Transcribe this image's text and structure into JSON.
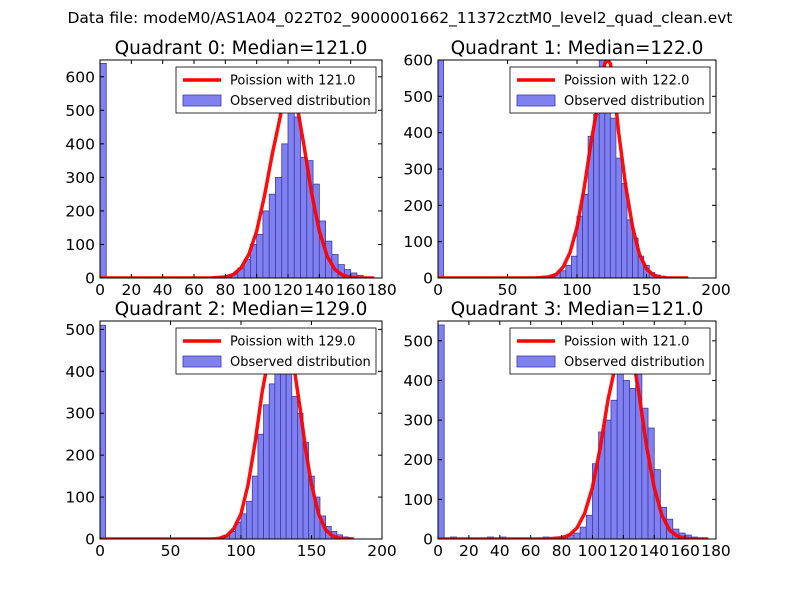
{
  "figure": {
    "suptitle": "Data file: modeM0/AS1A04_022T02_9000001662_11372cztM0_level2_quad_clean.evt"
  },
  "colors": {
    "bar_fill": "#8080f0",
    "bar_edge": "#3b3ba8",
    "poisson_line": "#ff0000"
  },
  "chart_data": [
    {
      "type": "bar",
      "title": "Quadrant 0: Median=121.0",
      "xlim": [
        0,
        180
      ],
      "ylim": [
        0,
        650
      ],
      "xticks": [
        0,
        20,
        40,
        60,
        80,
        100,
        120,
        140,
        160,
        180
      ],
      "yticks": [
        0,
        100,
        200,
        300,
        400,
        500,
        600
      ],
      "grid": false,
      "legend_position": "top-right",
      "series": [
        {
          "name": "Observed distribution",
          "kind": "histogram",
          "bin_edges": [
            0,
            4,
            8,
            12,
            16,
            20,
            24,
            28,
            32,
            36,
            40,
            44,
            48,
            52,
            56,
            60,
            64,
            68,
            72,
            76,
            80,
            84,
            88,
            92,
            96,
            100,
            104,
            108,
            112,
            116,
            120,
            124,
            128,
            132,
            136,
            140,
            144,
            148,
            152,
            156,
            160,
            164,
            168,
            172,
            176
          ],
          "counts": [
            640,
            0,
            0,
            0,
            0,
            0,
            0,
            0,
            0,
            0,
            0,
            0,
            0,
            0,
            0,
            0,
            0,
            0,
            0,
            5,
            8,
            12,
            30,
            55,
            100,
            130,
            200,
            250,
            300,
            400,
            560,
            480,
            360,
            350,
            280,
            170,
            110,
            70,
            40,
            25,
            15,
            8,
            3,
            0
          ]
        },
        {
          "name": "Poission with 121.0",
          "kind": "line",
          "x": [
            0,
            60,
            70,
            80,
            85,
            90,
            95,
            100,
            105,
            110,
            115,
            117,
            119,
            121,
            123,
            125,
            127,
            130,
            135,
            140,
            145,
            150,
            155,
            160,
            165,
            170,
            175
          ],
          "y": [
            0,
            0,
            0,
            3,
            10,
            30,
            70,
            140,
            245,
            370,
            480,
            545,
            590,
            610,
            590,
            545,
            480,
            400,
            255,
            140,
            65,
            25,
            8,
            2,
            0,
            0,
            0
          ]
        }
      ]
    },
    {
      "type": "bar",
      "title": "Quadrant 1: Median=122.0",
      "xlim": [
        0,
        200
      ],
      "ylim": [
        0,
        600
      ],
      "xticks": [
        0,
        50,
        100,
        150,
        200
      ],
      "yticks": [
        0,
        100,
        200,
        300,
        400,
        500,
        600
      ],
      "grid": false,
      "legend_position": "top-right",
      "series": [
        {
          "name": "Observed distribution",
          "kind": "histogram",
          "bin_edges": [
            0,
            4,
            8,
            12,
            16,
            20,
            24,
            28,
            32,
            36,
            40,
            44,
            48,
            52,
            56,
            60,
            64,
            68,
            72,
            76,
            80,
            84,
            88,
            92,
            96,
            100,
            104,
            108,
            112,
            116,
            120,
            124,
            128,
            132,
            136,
            140,
            144,
            148,
            152,
            156,
            160,
            164,
            168,
            172,
            176,
            180
          ],
          "counts": [
            600,
            0,
            0,
            0,
            0,
            0,
            0,
            0,
            0,
            0,
            0,
            0,
            0,
            0,
            0,
            0,
            0,
            0,
            0,
            5,
            8,
            12,
            20,
            35,
            60,
            170,
            230,
            390,
            450,
            600,
            480,
            440,
            330,
            260,
            160,
            110,
            60,
            35,
            15,
            8,
            5,
            3,
            2,
            0,
            0
          ]
        },
        {
          "name": "Poission with 122.0",
          "kind": "line",
          "x": [
            0,
            60,
            70,
            80,
            85,
            90,
            95,
            100,
            105,
            110,
            115,
            118,
            120,
            122,
            124,
            126,
            130,
            135,
            140,
            145,
            150,
            155,
            160,
            165,
            170,
            180
          ],
          "y": [
            0,
            0,
            0,
            3,
            10,
            30,
            70,
            140,
            245,
            370,
            480,
            545,
            590,
            600,
            590,
            545,
            400,
            255,
            140,
            65,
            25,
            8,
            2,
            0,
            0,
            0
          ]
        }
      ]
    },
    {
      "type": "bar",
      "title": "Quadrant 2: Median=129.0",
      "xlim": [
        0,
        200
      ],
      "ylim": [
        0,
        520
      ],
      "xticks": [
        0,
        50,
        100,
        150,
        200
      ],
      "yticks": [
        0,
        100,
        200,
        300,
        400,
        500
      ],
      "grid": false,
      "legend_position": "top-right",
      "series": [
        {
          "name": "Observed distribution",
          "kind": "histogram",
          "bin_edges": [
            0,
            4,
            8,
            12,
            16,
            20,
            24,
            28,
            32,
            36,
            40,
            44,
            48,
            52,
            56,
            60,
            64,
            68,
            72,
            76,
            80,
            84,
            88,
            92,
            96,
            100,
            104,
            108,
            112,
            116,
            120,
            124,
            128,
            132,
            136,
            140,
            144,
            148,
            152,
            156,
            160,
            164,
            168,
            172,
            176,
            180
          ],
          "counts": [
            510,
            0,
            0,
            0,
            0,
            0,
            0,
            0,
            0,
            0,
            0,
            0,
            0,
            0,
            0,
            0,
            0,
            0,
            0,
            0,
            0,
            3,
            8,
            18,
            40,
            60,
            90,
            150,
            250,
            320,
            370,
            400,
            420,
            430,
            340,
            300,
            230,
            150,
            100,
            55,
            30,
            18,
            10,
            5,
            0
          ]
        },
        {
          "name": "Poission with 129.0",
          "kind": "line",
          "x": [
            0,
            80,
            85,
            90,
            95,
            100,
            105,
            110,
            115,
            120,
            124,
            127,
            129,
            131,
            134,
            138,
            142,
            146,
            150,
            155,
            160,
            165,
            170,
            180
          ],
          "y": [
            0,
            0,
            2,
            8,
            25,
            60,
            130,
            230,
            350,
            440,
            480,
            495,
            500,
            495,
            470,
            400,
            310,
            210,
            130,
            60,
            22,
            7,
            2,
            0
          ]
        }
      ]
    },
    {
      "type": "bar",
      "title": "Quadrant 3: Median=121.0",
      "xlim": [
        0,
        180
      ],
      "ylim": [
        0,
        550
      ],
      "xticks": [
        0,
        20,
        40,
        60,
        80,
        100,
        120,
        140,
        160,
        180
      ],
      "yticks": [
        0,
        100,
        200,
        300,
        400,
        500
      ],
      "grid": false,
      "legend_position": "top-right",
      "series": [
        {
          "name": "Observed distribution",
          "kind": "histogram",
          "bin_edges": [
            0,
            4,
            8,
            12,
            16,
            20,
            24,
            28,
            32,
            36,
            40,
            44,
            48,
            52,
            56,
            60,
            64,
            68,
            72,
            76,
            80,
            84,
            88,
            92,
            96,
            100,
            104,
            108,
            112,
            116,
            120,
            124,
            128,
            132,
            136,
            140,
            144,
            148,
            152,
            156,
            160,
            164,
            168,
            172,
            176
          ],
          "counts": [
            540,
            0,
            5,
            0,
            0,
            0,
            0,
            0,
            5,
            0,
            5,
            0,
            0,
            0,
            0,
            0,
            0,
            5,
            0,
            0,
            5,
            10,
            15,
            30,
            60,
            190,
            270,
            300,
            350,
            480,
            400,
            380,
            480,
            330,
            280,
            175,
            80,
            50,
            25,
            15,
            10,
            5,
            2,
            0
          ]
        },
        {
          "name": "Poission with 121.0",
          "kind": "line",
          "x": [
            0,
            60,
            70,
            80,
            85,
            90,
            95,
            100,
            105,
            110,
            115,
            117,
            119,
            121,
            123,
            125,
            127,
            130,
            135,
            140,
            145,
            150,
            155,
            160,
            165,
            170,
            175
          ],
          "y": [
            0,
            0,
            0,
            3,
            10,
            28,
            65,
            130,
            230,
            350,
            440,
            480,
            505,
            515,
            505,
            480,
            440,
            370,
            235,
            130,
            60,
            22,
            7,
            2,
            0,
            0,
            0
          ]
        }
      ]
    }
  ]
}
